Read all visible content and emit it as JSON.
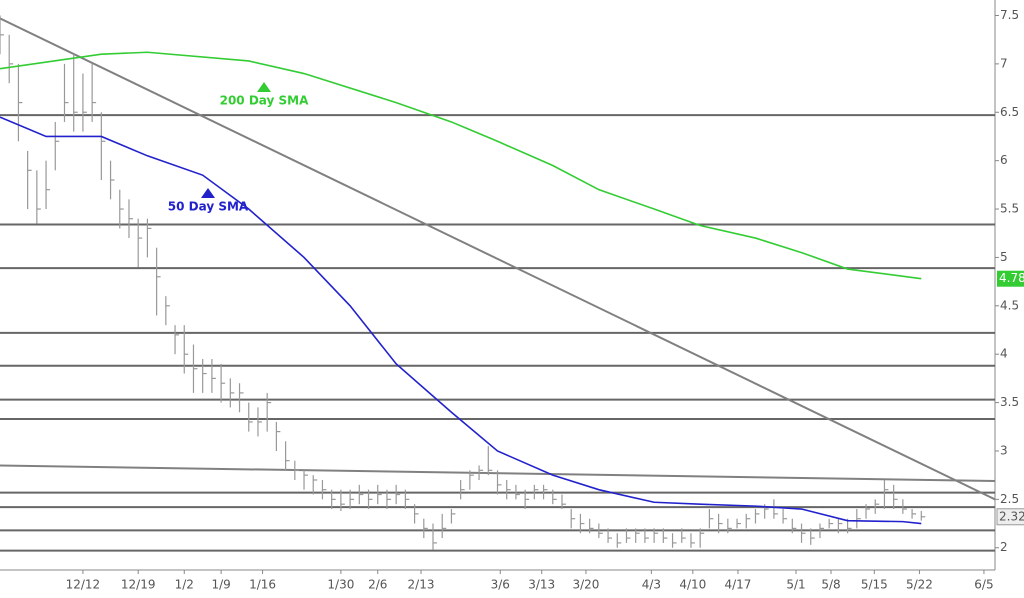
{
  "chart_data": {
    "type": "hlc",
    "x": [
      0,
      1,
      2,
      3,
      4,
      5,
      6,
      7,
      8,
      9,
      10,
      11,
      12,
      13,
      14,
      15,
      16,
      17,
      18,
      19,
      20,
      21,
      22,
      23,
      24,
      25,
      26,
      27,
      28,
      29,
      30,
      31,
      32,
      33,
      34,
      35,
      36,
      37,
      38,
      39,
      40,
      41,
      42,
      43,
      44,
      45,
      46,
      47,
      48,
      49,
      50,
      51,
      52,
      53,
      54,
      55,
      56,
      57,
      58,
      59,
      60,
      61,
      62,
      63,
      64,
      65,
      66,
      67,
      68,
      69,
      70,
      71,
      72,
      73,
      74,
      75,
      76,
      77,
      78,
      79,
      80,
      81,
      82,
      83,
      84,
      85,
      86,
      87,
      88,
      89,
      90,
      91,
      92,
      93,
      94,
      95,
      96,
      97,
      98,
      99,
      100
    ],
    "high": [
      7.5,
      7.3,
      7.0,
      6.1,
      5.9,
      6.0,
      6.4,
      7.0,
      7.1,
      6.9,
      7.0,
      6.5,
      6.0,
      5.7,
      5.6,
      5.4,
      5.4,
      5.1,
      4.6,
      4.3,
      4.3,
      4.1,
      3.95,
      3.95,
      3.9,
      3.75,
      3.7,
      3.5,
      3.45,
      3.6,
      3.3,
      3.1,
      2.9,
      2.8,
      2.75,
      2.7,
      2.6,
      2.6,
      2.6,
      2.65,
      2.6,
      2.65,
      2.6,
      2.65,
      2.6,
      2.45,
      2.3,
      2.25,
      2.35,
      2.4,
      2.7,
      2.8,
      2.85,
      3.05,
      2.8,
      2.7,
      2.65,
      2.6,
      2.65,
      2.65,
      2.6,
      2.55,
      2.4,
      2.35,
      2.3,
      2.25,
      2.2,
      2.15,
      2.2,
      2.2,
      2.2,
      2.2,
      2.2,
      2.15,
      2.2,
      2.15,
      2.2,
      2.4,
      2.35,
      2.3,
      2.3,
      2.35,
      2.4,
      2.45,
      2.5,
      2.4,
      2.3,
      2.25,
      2.2,
      2.25,
      2.3,
      2.3,
      2.3,
      2.4,
      2.45,
      2.5,
      2.7,
      2.65,
      2.5,
      2.4,
      2.38
    ],
    "low": [
      7.1,
      6.8,
      6.2,
      5.5,
      5.35,
      5.5,
      5.9,
      6.4,
      6.3,
      6.3,
      6.4,
      5.8,
      5.6,
      5.3,
      5.2,
      4.9,
      5.0,
      4.4,
      4.3,
      4.0,
      3.8,
      3.6,
      3.6,
      3.6,
      3.5,
      3.45,
      3.4,
      3.2,
      3.15,
      3.2,
      3.0,
      2.8,
      2.7,
      2.6,
      2.55,
      2.5,
      2.4,
      2.38,
      2.4,
      2.45,
      2.4,
      2.45,
      2.4,
      2.45,
      2.4,
      2.25,
      2.1,
      1.98,
      2.1,
      2.25,
      2.5,
      2.6,
      2.7,
      2.75,
      2.55,
      2.5,
      2.5,
      2.4,
      2.5,
      2.5,
      2.45,
      2.4,
      2.2,
      2.15,
      2.15,
      2.1,
      2.05,
      2.0,
      2.05,
      2.05,
      2.05,
      2.05,
      2.05,
      2.0,
      2.05,
      2.0,
      2.0,
      2.2,
      2.15,
      2.15,
      2.2,
      2.2,
      2.25,
      2.3,
      2.3,
      2.25,
      2.15,
      2.05,
      2.03,
      2.1,
      2.2,
      2.15,
      2.15,
      2.2,
      2.3,
      2.35,
      2.4,
      2.4,
      2.35,
      2.3,
      2.28
    ],
    "close": [
      7.3,
      7.0,
      6.6,
      5.9,
      5.5,
      5.7,
      6.2,
      6.6,
      6.5,
      6.5,
      6.6,
      6.2,
      5.8,
      5.5,
      5.4,
      5.2,
      5.3,
      4.8,
      4.5,
      4.2,
      4.0,
      3.85,
      3.8,
      3.75,
      3.7,
      3.6,
      3.6,
      3.3,
      3.3,
      3.5,
      3.2,
      2.9,
      2.8,
      2.75,
      2.7,
      2.6,
      2.5,
      2.45,
      2.5,
      2.55,
      2.5,
      2.55,
      2.5,
      2.55,
      2.5,
      2.35,
      2.2,
      2.05,
      2.2,
      2.35,
      2.6,
      2.75,
      2.8,
      2.8,
      2.65,
      2.6,
      2.55,
      2.5,
      2.6,
      2.6,
      2.5,
      2.45,
      2.3,
      2.25,
      2.2,
      2.15,
      2.1,
      2.05,
      2.1,
      2.15,
      2.1,
      2.15,
      2.1,
      2.05,
      2.1,
      2.05,
      2.15,
      2.3,
      2.25,
      2.2,
      2.25,
      2.3,
      2.35,
      2.4,
      2.35,
      2.3,
      2.2,
      2.15,
      2.1,
      2.2,
      2.25,
      2.25,
      2.2,
      2.3,
      2.4,
      2.45,
      2.6,
      2.5,
      2.4,
      2.35,
      2.32
    ],
    "bar_color": "#999999",
    "series": [
      {
        "name": "200 Day SMA",
        "color": "#33cc33",
        "x": [
          0,
          11,
          16,
          27,
          33,
          43,
          49,
          54,
          60,
          65,
          71,
          76,
          82,
          87,
          92,
          100
        ],
        "values": [
          6.95,
          7.1,
          7.12,
          7.03,
          6.9,
          6.6,
          6.4,
          6.2,
          5.95,
          5.7,
          5.5,
          5.33,
          5.2,
          5.05,
          4.88,
          4.78
        ]
      },
      {
        "name": "50 Day SMA",
        "color": "#2222cc",
        "x": [
          0,
          5,
          11,
          16,
          22,
          27,
          33,
          38,
          43,
          49,
          54,
          60,
          65,
          71,
          76,
          82,
          87,
          92,
          98,
          100
        ],
        "values": [
          6.45,
          6.25,
          6.25,
          6.05,
          5.85,
          5.5,
          5.0,
          4.5,
          3.9,
          3.4,
          3.0,
          2.75,
          2.6,
          2.47,
          2.45,
          2.43,
          2.4,
          2.28,
          2.27,
          2.25
        ]
      }
    ],
    "trendlines": [
      {
        "x": [
          0,
          108
        ],
        "values": [
          7.47,
          2.5
        ]
      },
      {
        "x": [
          0,
          108
        ],
        "values": [
          2.85,
          2.69
        ]
      }
    ],
    "hlines": [
      6.47,
      5.34,
      4.89,
      4.22,
      3.88,
      3.53,
      3.33,
      2.57,
      2.42,
      2.18,
      1.97
    ],
    "xlim": [
      0,
      108
    ],
    "xticks": [
      {
        "value": 9,
        "label": "12/12"
      },
      {
        "value": 15,
        "label": "12/19"
      },
      {
        "value": 20,
        "label": "1/2"
      },
      {
        "value": 24,
        "label": "1/9"
      },
      {
        "value": 28.5,
        "label": "1/16"
      },
      {
        "value": 37,
        "label": "1/30"
      },
      {
        "value": 41,
        "label": "2/6"
      },
      {
        "value": 45.7,
        "label": "2/13"
      },
      {
        "value": 54.3,
        "label": "3/6"
      },
      {
        "value": 58.8,
        "label": "3/13"
      },
      {
        "value": 63.6,
        "label": "3/20"
      },
      {
        "value": 70.7,
        "label": "4/3"
      },
      {
        "value": 75.2,
        "label": "4/10"
      },
      {
        "value": 80.1,
        "label": "4/17"
      },
      {
        "value": 86.4,
        "label": "5/1"
      },
      {
        "value": 90.2,
        "label": "5/8"
      },
      {
        "value": 94.9,
        "label": "5/15"
      },
      {
        "value": 99.8,
        "label": "5/22"
      },
      {
        "value": 106.8,
        "label": "6/5"
      }
    ],
    "ylim": [
      1.77,
      7.66
    ],
    "yticks": [
      2,
      2.5,
      3,
      3.5,
      4,
      4.5,
      5,
      5.5,
      6,
      6.5,
      7,
      7.5
    ]
  }
}
